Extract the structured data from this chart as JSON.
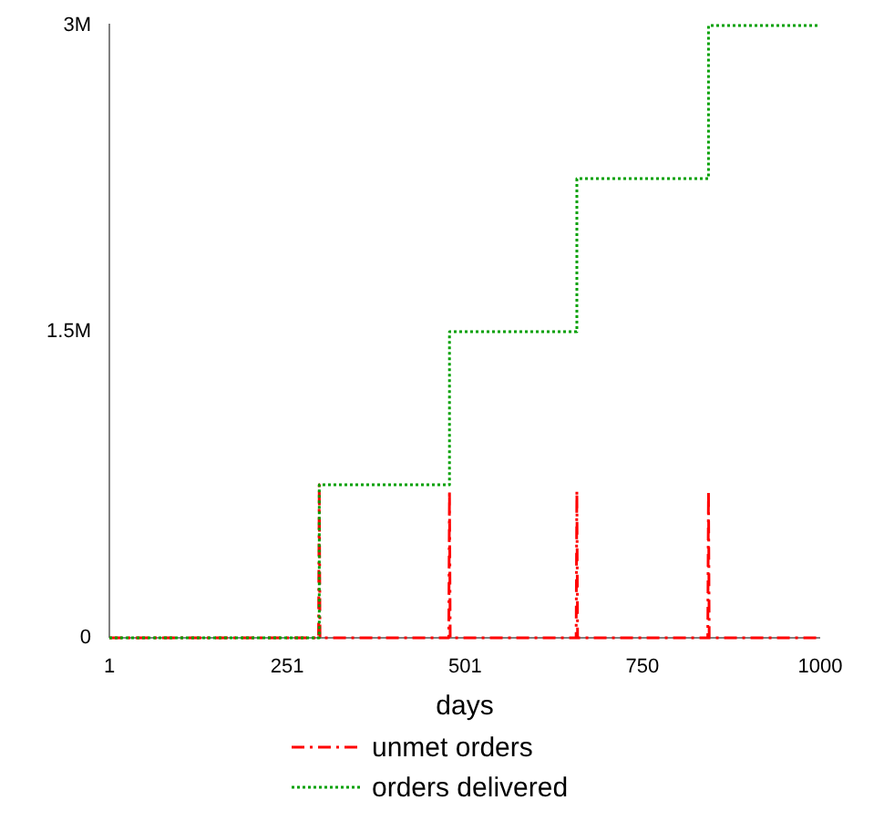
{
  "chart_data": {
    "type": "line",
    "xlabel": "days",
    "xlim": [
      1,
      1000
    ],
    "xticks": [
      1,
      251,
      501,
      750,
      1000
    ],
    "ylim": [
      0,
      3000000
    ],
    "yticks": [
      {
        "value": 0,
        "label": "0"
      },
      {
        "value": 1500000,
        "label": "1.5M"
      },
      {
        "value": 3000000,
        "label": "3M"
      }
    ],
    "grid": false,
    "legend": "bottom",
    "series": [
      {
        "name": "unmet orders",
        "color": "#ff0000",
        "line_style": "dashdot",
        "x": [
          1,
          295,
          296,
          297,
          478,
          479,
          480,
          657,
          658,
          659,
          842,
          843,
          844,
          1000
        ],
        "values": [
          0,
          0,
          750000,
          0,
          0,
          720000,
          0,
          0,
          720000,
          0,
          0,
          720000,
          0,
          0
        ]
      },
      {
        "name": "orders delivered",
        "color": "#00a000",
        "type": "step",
        "line_style": "dotted",
        "x": [
          1,
          296,
          479,
          658,
          843,
          1000
        ],
        "values": [
          0,
          750000,
          1500000,
          2250000,
          3000000,
          3000000
        ]
      }
    ]
  }
}
